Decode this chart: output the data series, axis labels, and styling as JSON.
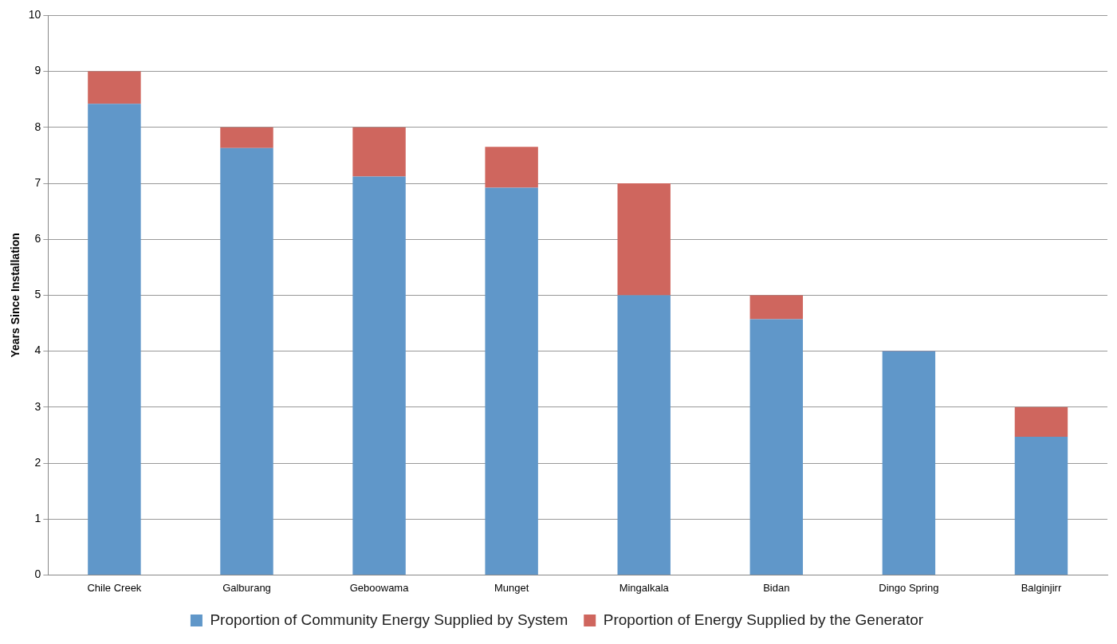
{
  "chart_data": {
    "type": "bar",
    "ylabel": "Years Since Installation",
    "categories": [
      "Chile Creek",
      "Galburang",
      "Geboowama",
      "Munget",
      "Mingalkala",
      "Bidan",
      "Dingo Spring",
      "Balginjirr"
    ],
    "series": [
      {
        "name": "Proportion of Community Energy Supplied by System",
        "color": "#6097c9",
        "values": [
          8.42,
          7.63,
          7.12,
          6.92,
          5.0,
          4.57,
          4.0,
          2.47
        ]
      },
      {
        "name": "Proportion of Energy Supplied by the Generator",
        "color": "#cf665e",
        "values": [
          0.58,
          0.37,
          0.88,
          0.73,
          2.0,
          0.43,
          0.01,
          0.53
        ]
      }
    ],
    "stacked": true,
    "ylim": [
      0,
      10
    ],
    "yticks": [
      0,
      1,
      2,
      3,
      4,
      5,
      6,
      7,
      8,
      9,
      10
    ],
    "grid": "y",
    "legend": "bottom"
  }
}
